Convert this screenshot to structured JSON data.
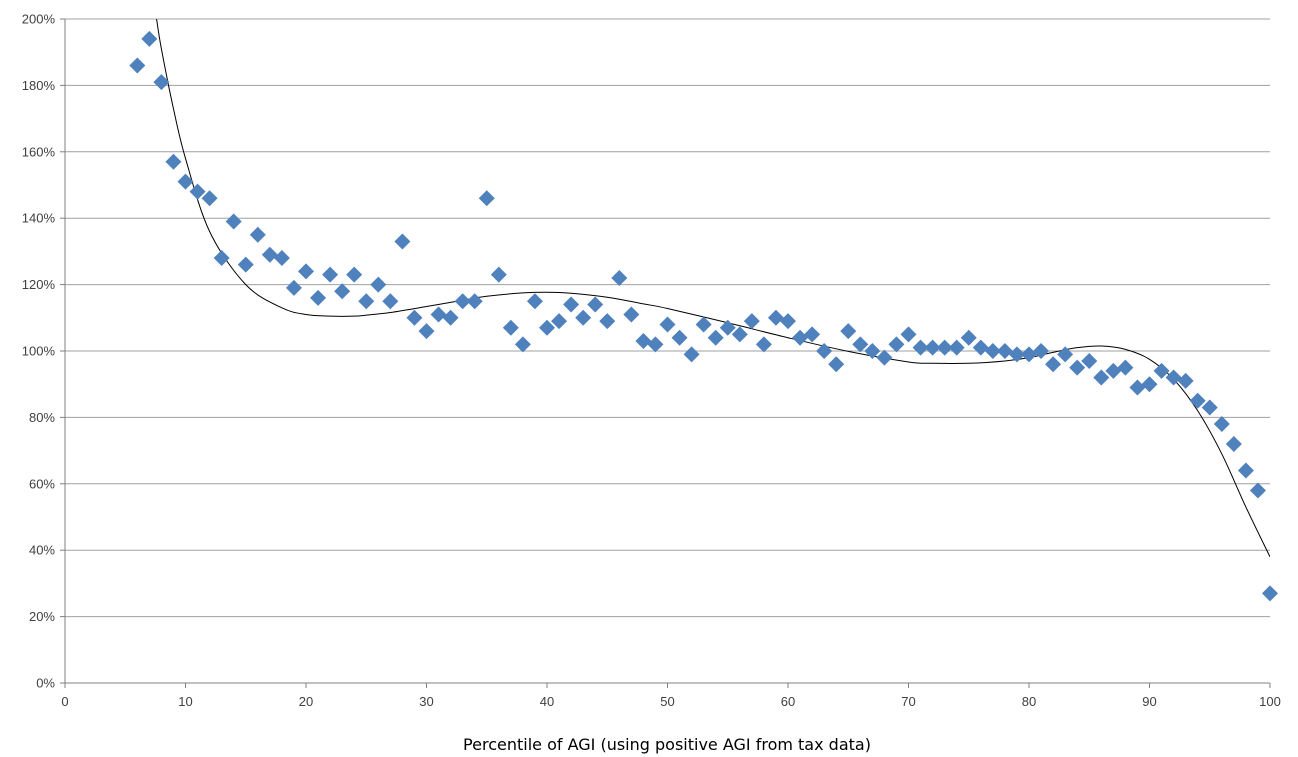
{
  "colors": {
    "marker": "#4F81BD",
    "trendline": "#000000",
    "gridline": "#A0A0A0",
    "axis": "#808080",
    "text": "#404040"
  },
  "chart_data": {
    "type": "scatter",
    "title": "",
    "xlabel": "Percentile of AGI (using positive AGI from tax data)",
    "ylabel": "",
    "xlim": [
      0,
      100
    ],
    "ylim": [
      0,
      200
    ],
    "x_ticks": [
      0,
      10,
      20,
      30,
      40,
      50,
      60,
      70,
      80,
      90,
      100
    ],
    "y_ticks": [
      0,
      20,
      40,
      60,
      80,
      100,
      120,
      140,
      160,
      180,
      200
    ],
    "x_tick_labels": [
      "0",
      "10",
      "20",
      "30",
      "40",
      "50",
      "60",
      "70",
      "80",
      "90",
      "100"
    ],
    "y_tick_labels": [
      "0%",
      "20%",
      "40%",
      "60%",
      "80%",
      "100%",
      "120%",
      "140%",
      "160%",
      "180%",
      "200%"
    ],
    "grid": "horizontal",
    "legend": "none",
    "marker": "diamond",
    "series": [
      {
        "x": [
          6,
          7,
          8,
          9,
          10,
          11,
          12,
          13,
          14,
          15,
          16,
          17,
          18,
          19,
          20,
          21,
          22,
          23,
          24,
          25,
          26,
          27,
          28,
          29,
          30,
          31,
          32,
          33,
          34,
          35,
          36,
          37,
          38,
          39,
          40,
          41,
          42,
          43,
          44,
          45,
          46,
          47,
          48,
          49,
          50,
          51,
          52,
          53,
          54,
          55,
          56,
          57,
          58,
          59,
          60,
          61,
          62,
          63,
          64,
          65,
          66,
          67,
          68,
          69,
          70,
          71,
          72,
          73,
          74,
          75,
          76,
          77,
          78,
          79,
          80,
          81,
          82,
          83,
          84,
          85,
          86,
          87,
          88,
          89,
          90,
          91,
          92,
          93,
          94,
          95,
          96,
          97,
          98,
          99,
          100
        ],
        "y": [
          186,
          194,
          181,
          157,
          151,
          148,
          146,
          128,
          139,
          126,
          135,
          129,
          128,
          119,
          124,
          116,
          123,
          118,
          123,
          115,
          120,
          115,
          133,
          110,
          106,
          111,
          110,
          115,
          115,
          146,
          123,
          107,
          102,
          115,
          107,
          109,
          114,
          110,
          114,
          109,
          122,
          111,
          103,
          102,
          108,
          104,
          99,
          108,
          104,
          107,
          105,
          109,
          102,
          110,
          109,
          104,
          105,
          100,
          96,
          106,
          102,
          100,
          98,
          102,
          105,
          101,
          101,
          101,
          101,
          104,
          101,
          100,
          100,
          99,
          99,
          100,
          96,
          99,
          95,
          97,
          92,
          94,
          95,
          89,
          90,
          94,
          92,
          91,
          85,
          83,
          78,
          72,
          64,
          58,
          27
        ]
      }
    ],
    "trendline": {
      "type": "polynomial",
      "x": [
        7.6,
        8,
        9,
        10,
        12,
        15,
        18,
        20,
        22,
        24,
        25,
        27,
        30,
        33,
        35,
        38,
        40,
        42,
        45,
        48,
        50,
        55,
        60,
        65,
        70,
        72,
        75,
        78,
        80,
        82,
        84,
        86,
        88,
        90,
        92,
        94,
        96,
        98,
        100
      ],
      "y": [
        200,
        191,
        173,
        158,
        136,
        120,
        113,
        111,
        110.5,
        110.5,
        110.8,
        111.6,
        113.4,
        115.3,
        116.5,
        117.5,
        117.7,
        117.4,
        116.2,
        114.2,
        112.8,
        108.5,
        104,
        99.9,
        96.7,
        96.3,
        96.3,
        97,
        98,
        99.6,
        101,
        101.5,
        100.5,
        97.5,
        91.5,
        82,
        69,
        53,
        38
      ]
    }
  }
}
